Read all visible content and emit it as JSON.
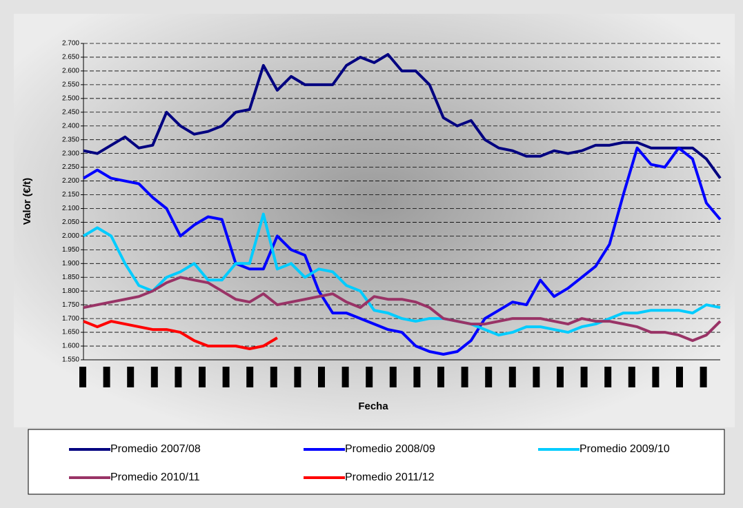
{
  "chart_data": {
    "type": "line",
    "y_label": "Valor (€/t)",
    "x_label": "Fecha",
    "categories": [
      null,
      null,
      null,
      null,
      null,
      null,
      null,
      null,
      null,
      null,
      null,
      null,
      null,
      null,
      null,
      null,
      null,
      null,
      null,
      null,
      null,
      null,
      null,
      null,
      null,
      null,
      null,
      null,
      null,
      null,
      null,
      null,
      null,
      null,
      null,
      null,
      null,
      null,
      null,
      null,
      null,
      null,
      null,
      null,
      null,
      null,
      null
    ],
    "ylim": [
      1.55,
      2.7
    ],
    "yticks": [
      {
        "value": 1.55,
        "label": "1.550"
      },
      {
        "value": 1.6,
        "label": "1.600"
      },
      {
        "value": 1.65,
        "label": "1.650"
      },
      {
        "value": 1.7,
        "label": "1.700"
      },
      {
        "value": 1.75,
        "label": "1.750"
      },
      {
        "value": 1.8,
        "label": "1.800"
      },
      {
        "value": 1.85,
        "label": "1.850"
      },
      {
        "value": 1.9,
        "label": "1.900"
      },
      {
        "value": 1.95,
        "label": "1.950"
      },
      {
        "value": 2.0,
        "label": "2.000"
      },
      {
        "value": 2.05,
        "label": "2.050"
      },
      {
        "value": 2.1,
        "label": "2.100"
      },
      {
        "value": 2.15,
        "label": "2.150"
      },
      {
        "value": 2.2,
        "label": "2.200"
      },
      {
        "value": 2.25,
        "label": "2.250"
      },
      {
        "value": 2.3,
        "label": "2.300"
      },
      {
        "value": 2.35,
        "label": "2.350"
      },
      {
        "value": 2.4,
        "label": "2.400"
      },
      {
        "value": 2.45,
        "label": "2.450"
      },
      {
        "value": 2.5,
        "label": "2.500"
      },
      {
        "value": 2.55,
        "label": "2.550"
      },
      {
        "value": 2.6,
        "label": "2.600"
      },
      {
        "value": 2.65,
        "label": "2.650"
      },
      {
        "value": 2.7,
        "label": "2.700"
      }
    ],
    "grid": true,
    "series": [
      {
        "name": "Promedio 2007/08",
        "color": "#000080",
        "values": [
          2.31,
          2.3,
          2.33,
          2.36,
          2.32,
          2.33,
          2.45,
          2.4,
          2.37,
          2.38,
          2.4,
          2.45,
          2.46,
          2.62,
          2.53,
          2.58,
          2.55,
          2.55,
          2.55,
          2.62,
          2.65,
          2.63,
          2.66,
          2.6,
          2.6,
          2.55,
          2.43,
          2.4,
          2.42,
          2.35,
          2.32,
          2.31,
          2.29,
          2.29,
          2.31,
          2.3,
          2.31,
          2.33,
          2.33,
          2.34,
          2.34,
          2.32,
          2.32,
          2.32,
          2.32,
          2.28,
          2.21
        ]
      },
      {
        "name": "Promedio 2008/09",
        "color": "#0000ff",
        "values": [
          2.21,
          2.24,
          2.21,
          2.2,
          2.19,
          2.14,
          2.1,
          2.0,
          2.04,
          2.07,
          2.06,
          1.9,
          1.88,
          1.88,
          2.0,
          1.95,
          1.93,
          1.8,
          1.72,
          1.72,
          1.7,
          1.68,
          1.66,
          1.65,
          1.6,
          1.58,
          1.57,
          1.58,
          1.62,
          1.7,
          1.73,
          1.76,
          1.75,
          1.84,
          1.78,
          1.81,
          1.85,
          1.89,
          1.97,
          2.15,
          2.32,
          2.26,
          2.25,
          2.32,
          2.28,
          2.12,
          2.06
        ]
      },
      {
        "name": "Promedio 2009/10",
        "color": "#00ccff",
        "values": [
          2.0,
          2.03,
          2.0,
          1.9,
          1.82,
          1.8,
          1.85,
          1.87,
          1.9,
          1.84,
          1.84,
          1.9,
          1.9,
          2.08,
          1.88,
          1.9,
          1.85,
          1.88,
          1.87,
          1.82,
          1.8,
          1.73,
          1.72,
          1.7,
          1.69,
          1.7,
          1.7,
          1.69,
          1.68,
          1.66,
          1.64,
          1.65,
          1.67,
          1.67,
          1.66,
          1.65,
          1.67,
          1.68,
          1.7,
          1.72,
          1.72,
          1.73,
          1.73,
          1.73,
          1.72,
          1.75,
          1.74
        ]
      },
      {
        "name": "Promedio 2010/11",
        "color": "#993366",
        "values": [
          1.74,
          1.75,
          1.76,
          1.77,
          1.78,
          1.8,
          1.83,
          1.85,
          1.84,
          1.83,
          1.8,
          1.77,
          1.76,
          1.79,
          1.75,
          1.76,
          1.77,
          1.78,
          1.79,
          1.76,
          1.74,
          1.78,
          1.77,
          1.77,
          1.76,
          1.74,
          1.7,
          1.69,
          1.68,
          1.68,
          1.69,
          1.7,
          1.7,
          1.7,
          1.69,
          1.68,
          1.7,
          1.69,
          1.69,
          1.68,
          1.67,
          1.65,
          1.65,
          1.64,
          1.62,
          1.64,
          1.69
        ]
      },
      {
        "name": "Promedio 2011/12",
        "color": "#ff0000",
        "values": [
          1.69,
          1.67,
          1.69,
          1.68,
          1.67,
          1.66,
          1.66,
          1.65,
          1.62,
          1.6,
          1.6,
          1.6,
          1.59,
          1.6,
          1.63,
          null,
          null,
          null,
          null,
          null,
          null,
          null,
          null,
          null,
          null,
          null,
          null,
          null,
          null,
          null,
          null,
          null,
          null,
          null,
          null,
          null,
          null,
          null,
          null,
          null,
          null,
          null,
          null,
          null,
          null,
          null,
          null
        ]
      }
    ]
  }
}
